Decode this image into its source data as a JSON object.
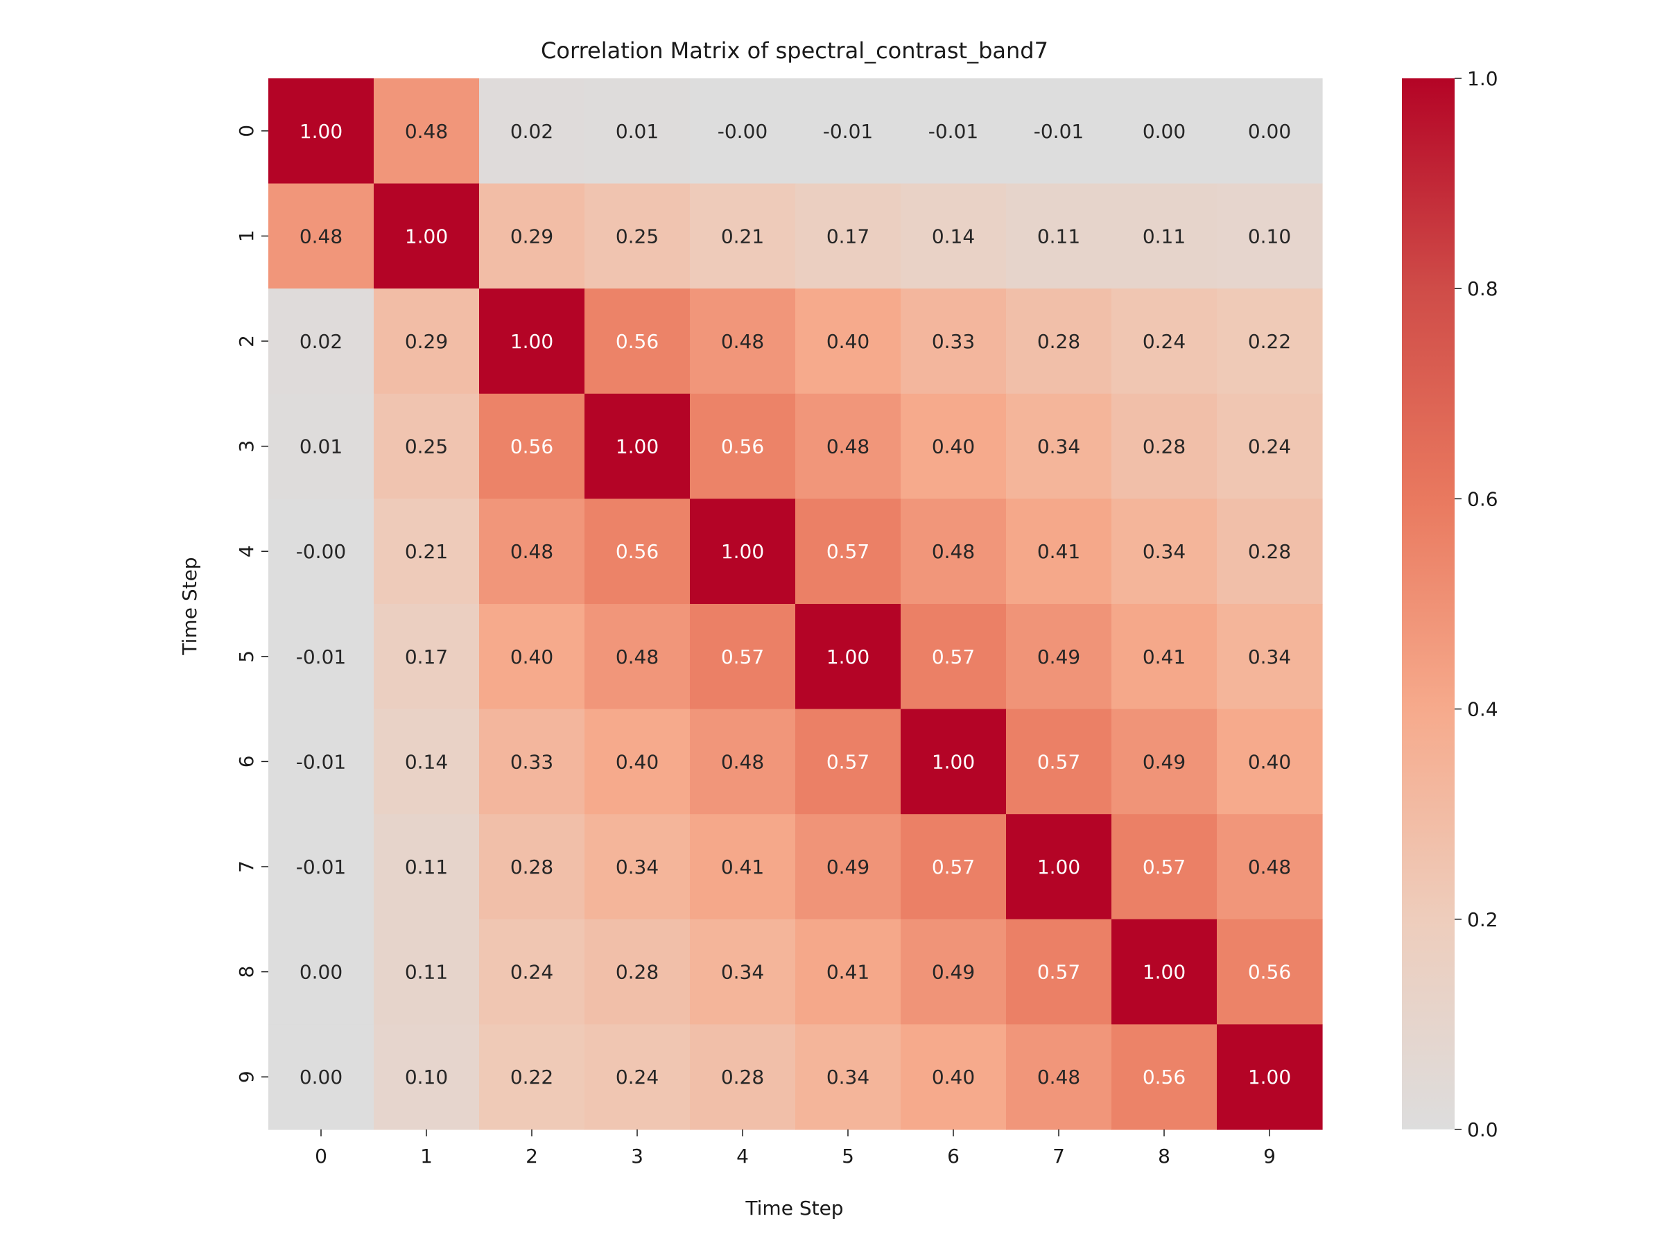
{
  "chart_data": {
    "type": "heatmap",
    "title": "Correlation Matrix of spectral_contrast_band7",
    "xlabel": "Time Step",
    "ylabel": "Time Step",
    "x_categories": [
      "0",
      "1",
      "2",
      "3",
      "4",
      "5",
      "6",
      "7",
      "8",
      "9"
    ],
    "y_categories": [
      "0",
      "1",
      "2",
      "3",
      "4",
      "5",
      "6",
      "7",
      "8",
      "9"
    ],
    "matrix": [
      [
        1.0,
        0.48,
        0.02,
        0.01,
        -0.0,
        -0.01,
        -0.01,
        -0.01,
        0.0,
        0.0
      ],
      [
        0.48,
        1.0,
        0.29,
        0.25,
        0.21,
        0.17,
        0.14,
        0.11,
        0.11,
        0.1
      ],
      [
        0.02,
        0.29,
        1.0,
        0.56,
        0.48,
        0.4,
        0.33,
        0.28,
        0.24,
        0.22
      ],
      [
        0.01,
        0.25,
        0.56,
        1.0,
        0.56,
        0.48,
        0.4,
        0.34,
        0.28,
        0.24
      ],
      [
        -0.0,
        0.21,
        0.48,
        0.56,
        1.0,
        0.57,
        0.48,
        0.41,
        0.34,
        0.28
      ],
      [
        -0.01,
        0.17,
        0.4,
        0.48,
        0.57,
        1.0,
        0.57,
        0.49,
        0.41,
        0.34
      ],
      [
        -0.01,
        0.14,
        0.33,
        0.4,
        0.48,
        0.57,
        1.0,
        0.57,
        0.49,
        0.4
      ],
      [
        -0.01,
        0.11,
        0.28,
        0.34,
        0.41,
        0.49,
        0.57,
        1.0,
        0.57,
        0.48
      ],
      [
        0.0,
        0.11,
        0.24,
        0.28,
        0.34,
        0.41,
        0.49,
        0.57,
        1.0,
        0.56
      ],
      [
        0.0,
        0.1,
        0.22,
        0.24,
        0.28,
        0.34,
        0.4,
        0.48,
        0.56,
        1.0
      ]
    ],
    "value_format": "2 decimals",
    "colorbar": {
      "range": [
        0.0,
        1.0
      ],
      "ticks": [
        "0.0",
        "0.2",
        "0.4",
        "0.6",
        "0.8",
        "1.0"
      ],
      "colormap": "coolwarm (centered at 0)",
      "placement": "right"
    },
    "grid": false
  }
}
